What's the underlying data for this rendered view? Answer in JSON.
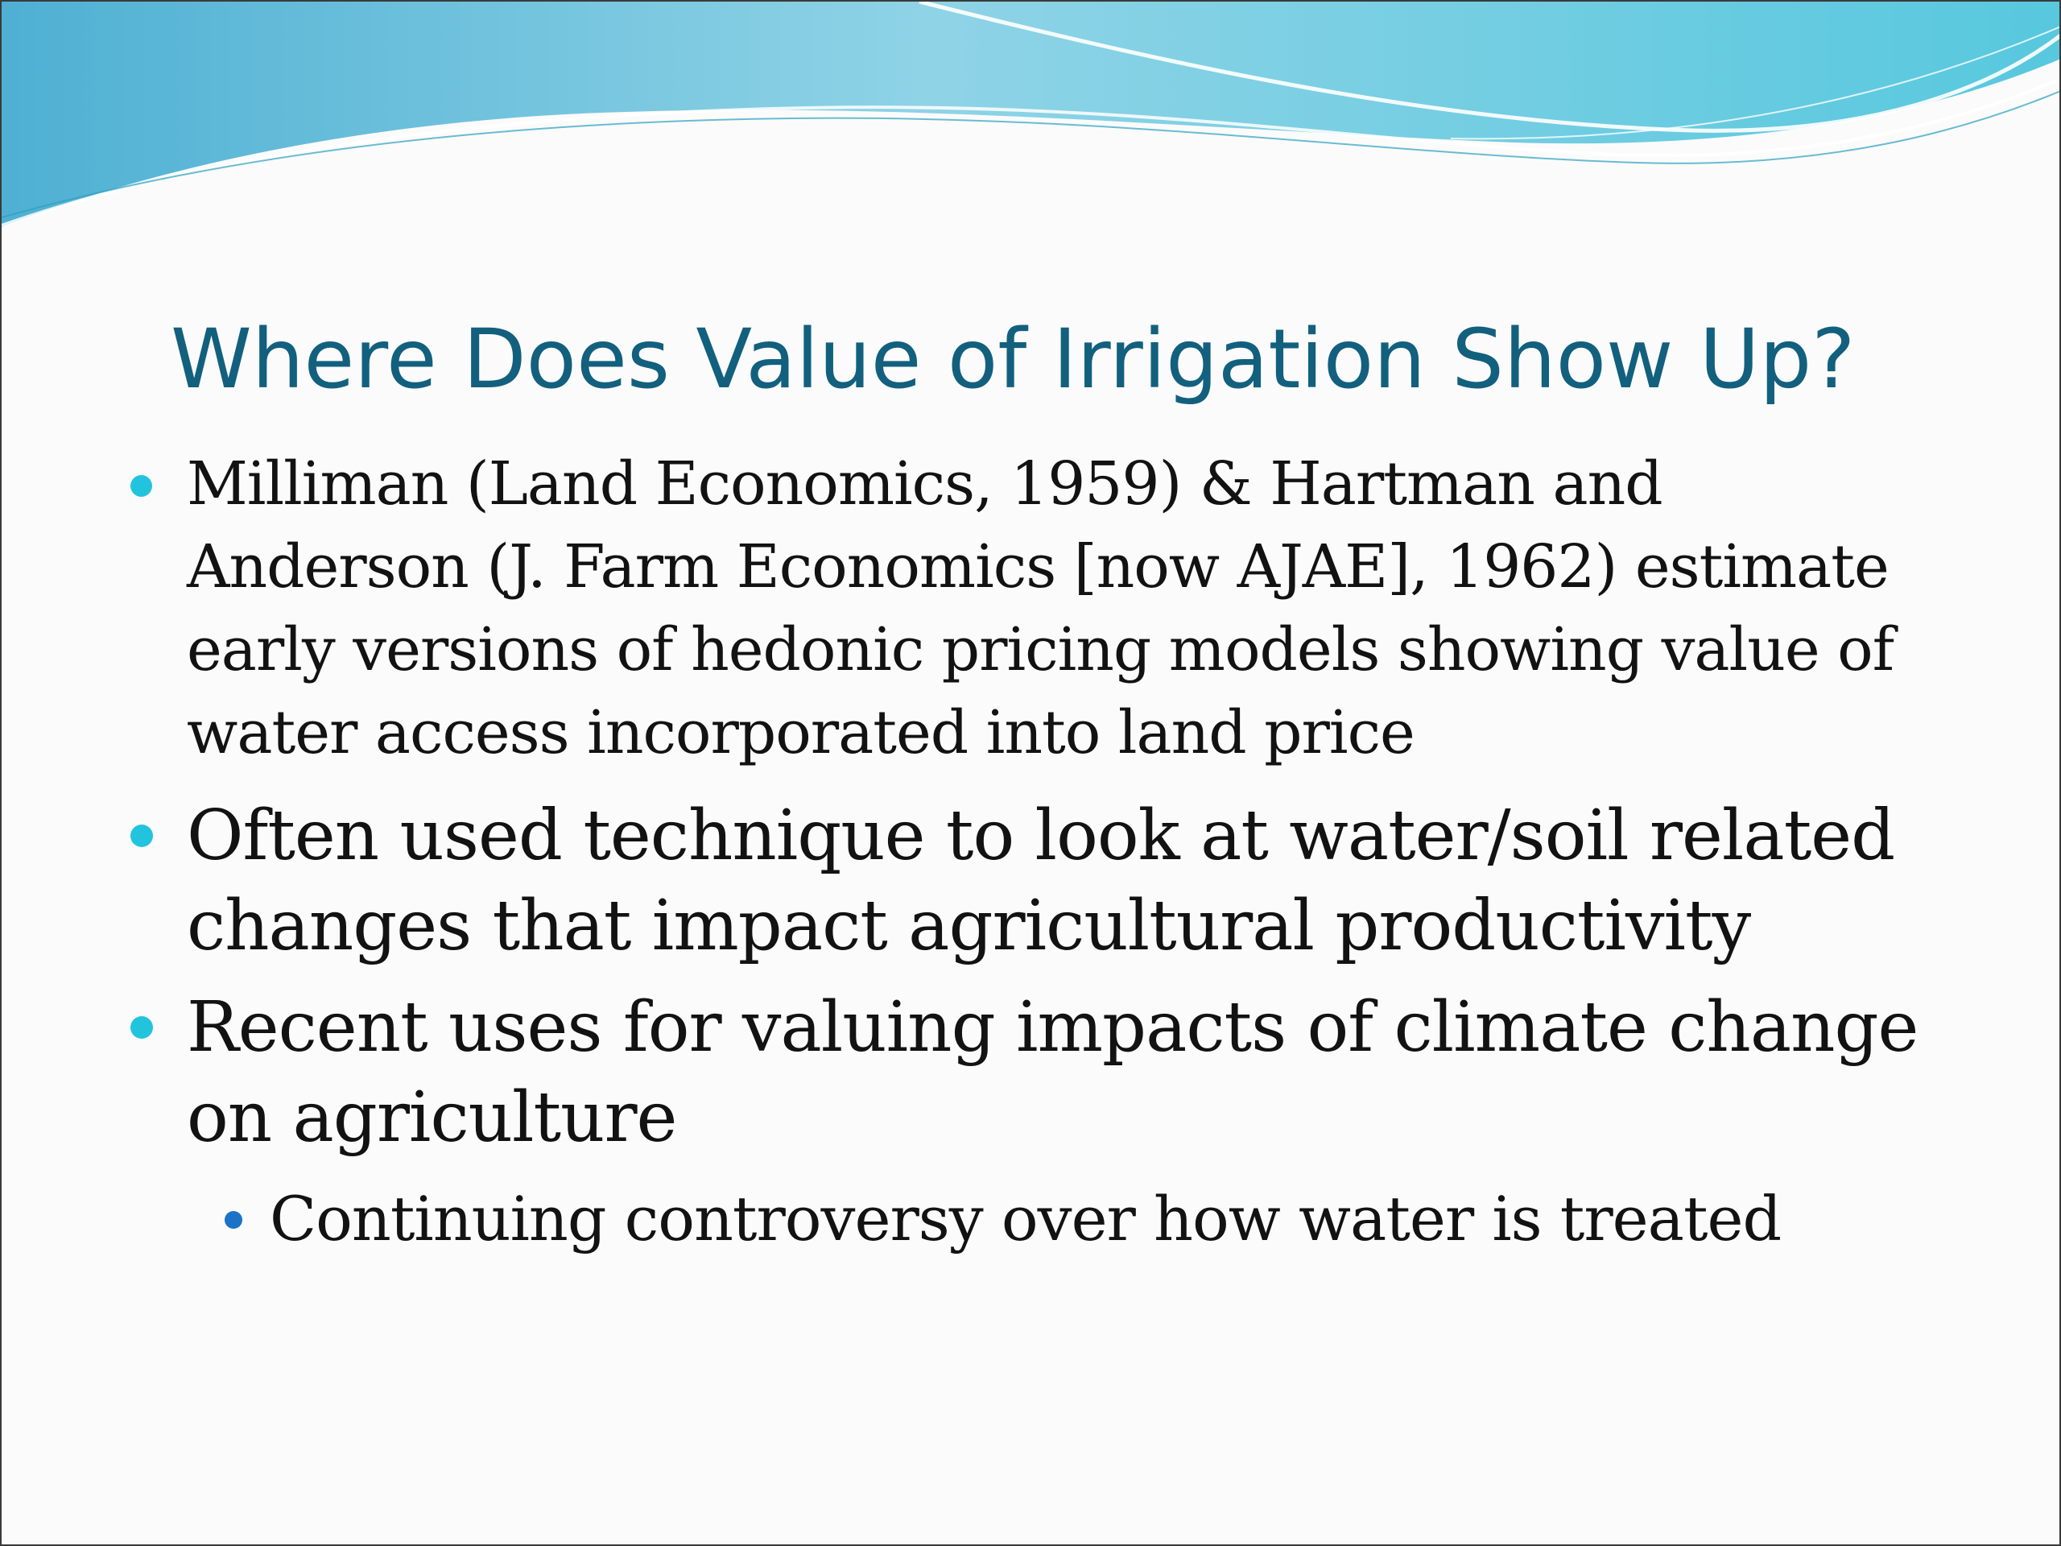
{
  "slide": {
    "title": "Where Does Value of Irrigation Show Up?",
    "bullets": [
      {
        "text": "Milliman (Land Economics, 1959) & Hartman and Anderson (J. Farm Economics [now AJAE], 1962) estimate early versions of hedonic pricing models showing value of water access incorporated into land price"
      },
      {
        "text": "Often used technique to look at water/soil related changes that impact agricultural productivity"
      },
      {
        "text": "Recent uses for valuing impacts of climate change on agriculture",
        "sub_bullets": [
          {
            "text": "Continuing controversy over how water is treated"
          }
        ]
      }
    ]
  },
  "colors": {
    "title": "#12607e",
    "body_text": "#121212",
    "bullet_primary": "#22c4dd",
    "bullet_secondary": "#1b73c8",
    "background": "#fbfbfb",
    "wave_light": "#a9e3ec",
    "wave_mid": "#5fc3d8",
    "wave_dark": "#3aa7c9"
  }
}
